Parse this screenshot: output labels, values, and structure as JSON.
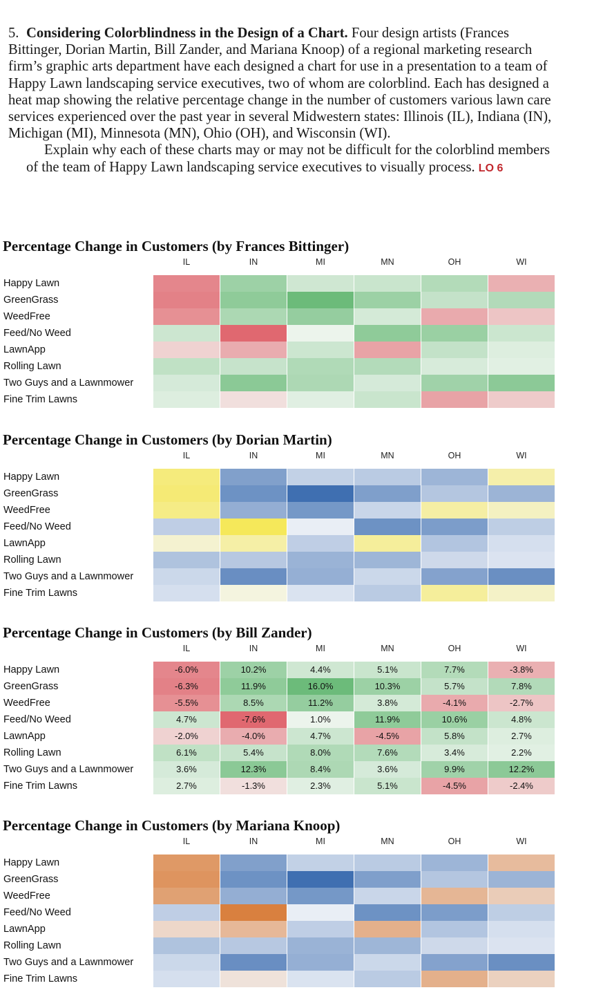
{
  "exercise": {
    "number": "5.",
    "title": "Considering Colorblindness in the Design of a Chart.",
    "paragraph1_rest": "Four design artists (Frances Bittinger, Dorian Martin, Bill Zander, and Mariana Knoop) of a regional marketing research firm’s graphic arts department have each designed a chart for use in a presentation to a team of Happy Lawn landscaping service executives, two of whom are colorblind. Each has designed a heat map showing the relative percentage change in the number of customers various lawn care services experienced over the past year in several Midwestern states: Illinois (IL), Indiana (IN), Michigan (MI), Minnesota (MN), Ohio (OH), and Wisconsin (WI).",
    "paragraph2": "Explain why each of these charts may or may not be difficult for the colorblind members of the team of Happy Lawn landscaping service executives to visually process.",
    "lo_tag": "LO 6"
  },
  "colors": {
    "bittinger_neg": "#e06870",
    "bittinger_zero": "#f4f8f4",
    "bittinger_pos": "#6cbb7a",
    "martin_neg": "#f5e85a",
    "martin_zero": "#f4f6fa",
    "martin_pos": "#3f6fb1",
    "knoop_neg": "#d9803f",
    "knoop_zero": "#f4f6fa",
    "knoop_pos": "#3f6fb1"
  },
  "chart_data": [
    {
      "type": "heatmap",
      "title": "Percentage Change in Customers (by Frances Bittinger)",
      "x": [
        "IL",
        "IN",
        "MI",
        "MN",
        "OH",
        "WI"
      ],
      "y": [
        "Happy Lawn",
        "GreenGrass",
        "WeedFree",
        "Feed/No Weed",
        "LawnApp",
        "Rolling Lawn",
        "Two Guys and a Lawnmower",
        "Fine Trim Lawns"
      ],
      "palette": "red-white-green",
      "show_values": false,
      "values": [
        [
          -6.0,
          10.2,
          4.4,
          5.1,
          7.7,
          -3.8
        ],
        [
          -6.3,
          11.9,
          16.0,
          10.3,
          5.7,
          7.8
        ],
        [
          -5.5,
          8.5,
          11.2,
          3.8,
          -4.1,
          -2.7
        ],
        [
          4.7,
          -7.6,
          1.0,
          11.9,
          10.6,
          4.8
        ],
        [
          -2.0,
          -4.0,
          4.7,
          -4.5,
          5.8,
          2.7
        ],
        [
          6.1,
          5.4,
          8.0,
          7.6,
          3.4,
          2.2
        ],
        [
          3.6,
          12.3,
          8.4,
          3.6,
          9.9,
          12.2
        ],
        [
          2.7,
          -1.3,
          2.3,
          5.1,
          -4.5,
          -2.4
        ]
      ]
    },
    {
      "type": "heatmap",
      "title": "Percentage Change in Customers (by Dorian Martin)",
      "x": [
        "IL",
        "IN",
        "MI",
        "MN",
        "OH",
        "WI"
      ],
      "y": [
        "Happy Lawn",
        "GreenGrass",
        "WeedFree",
        "Feed/No Weed",
        "LawnApp",
        "Rolling Lawn",
        "Two Guys and a Lawnmower",
        "Fine Trim Lawns"
      ],
      "palette": "yellow-white-blue",
      "show_values": false,
      "values": [
        [
          -6.0,
          10.2,
          4.4,
          5.1,
          7.7,
          -3.8
        ],
        [
          -6.3,
          11.9,
          16.0,
          10.3,
          5.7,
          7.8
        ],
        [
          -5.5,
          8.5,
          11.2,
          3.8,
          -4.1,
          -2.7
        ],
        [
          4.7,
          -7.6,
          1.0,
          11.9,
          10.6,
          4.8
        ],
        [
          -2.0,
          -4.0,
          4.7,
          -4.5,
          5.8,
          2.7
        ],
        [
          6.1,
          5.4,
          8.0,
          7.6,
          3.4,
          2.2
        ],
        [
          3.6,
          12.3,
          8.4,
          3.6,
          9.9,
          12.2
        ],
        [
          2.7,
          -1.3,
          2.3,
          5.1,
          -4.5,
          -2.4
        ]
      ]
    },
    {
      "type": "heatmap",
      "title": "Percentage Change in Customers (by Bill Zander)",
      "x": [
        "IL",
        "IN",
        "MI",
        "MN",
        "OH",
        "WI"
      ],
      "y": [
        "Happy Lawn",
        "GreenGrass",
        "WeedFree",
        "Feed/No Weed",
        "LawnApp",
        "Rolling Lawn",
        "Two Guys and a Lawnmower",
        "Fine Trim Lawns"
      ],
      "palette": "red-white-green",
      "show_values": true,
      "values": [
        [
          -6.0,
          10.2,
          4.4,
          5.1,
          7.7,
          -3.8
        ],
        [
          -6.3,
          11.9,
          16.0,
          10.3,
          5.7,
          7.8
        ],
        [
          -5.5,
          8.5,
          11.2,
          3.8,
          -4.1,
          -2.7
        ],
        [
          4.7,
          -7.6,
          1.0,
          11.9,
          10.6,
          4.8
        ],
        [
          -2.0,
          -4.0,
          4.7,
          -4.5,
          5.8,
          2.7
        ],
        [
          6.1,
          5.4,
          8.0,
          7.6,
          3.4,
          2.2
        ],
        [
          3.6,
          12.3,
          8.4,
          3.6,
          9.9,
          12.2
        ],
        [
          2.7,
          -1.3,
          2.3,
          5.1,
          -4.5,
          -2.4
        ]
      ],
      "labels": [
        [
          "-6.0%",
          "10.2%",
          "4.4%",
          "5.1%",
          "7.7%",
          "-3.8%"
        ],
        [
          "-6.3%",
          "11.9%",
          "16.0%",
          "10.3%",
          "5.7%",
          "7.8%"
        ],
        [
          "-5.5%",
          "8.5%",
          "11.2%",
          "3.8%",
          "-4.1%",
          "-2.7%"
        ],
        [
          "4.7%",
          "-7.6%",
          "1.0%",
          "11.9%",
          "10.6%",
          "4.8%"
        ],
        [
          "-2.0%",
          "-4.0%",
          "4.7%",
          "-4.5%",
          "5.8%",
          "2.7%"
        ],
        [
          "6.1%",
          "5.4%",
          "8.0%",
          "7.6%",
          "3.4%",
          "2.2%"
        ],
        [
          "3.6%",
          "12.3%",
          "8.4%",
          "3.6%",
          "9.9%",
          "12.2%"
        ],
        [
          "2.7%",
          "-1.3%",
          "2.3%",
          "5.1%",
          "-4.5%",
          "-2.4%"
        ]
      ]
    },
    {
      "type": "heatmap",
      "title": "Percentage Change in Customers (by Mariana Knoop)",
      "x": [
        "IL",
        "IN",
        "MI",
        "MN",
        "OH",
        "WI"
      ],
      "y": [
        "Happy Lawn",
        "GreenGrass",
        "WeedFree",
        "Feed/No Weed",
        "LawnApp",
        "Rolling Lawn",
        "Two Guys and a Lawnmower",
        "Fine Trim Lawns"
      ],
      "palette": "orange-white-blue",
      "show_values": false,
      "values": [
        [
          -6.0,
          10.2,
          4.4,
          5.1,
          7.7,
          -3.8
        ],
        [
          -6.3,
          11.9,
          16.0,
          10.3,
          5.7,
          7.8
        ],
        [
          -5.5,
          8.5,
          11.2,
          3.8,
          -4.1,
          -2.7
        ],
        [
          4.7,
          -7.6,
          1.0,
          11.9,
          10.6,
          4.8
        ],
        [
          -2.0,
          -4.0,
          4.7,
          -4.5,
          5.8,
          2.7
        ],
        [
          6.1,
          5.4,
          8.0,
          7.6,
          3.4,
          2.2
        ],
        [
          3.6,
          12.3,
          8.4,
          3.6,
          9.9,
          12.2
        ],
        [
          2.7,
          -1.3,
          2.3,
          5.1,
          -4.5,
          -2.4
        ]
      ]
    }
  ]
}
